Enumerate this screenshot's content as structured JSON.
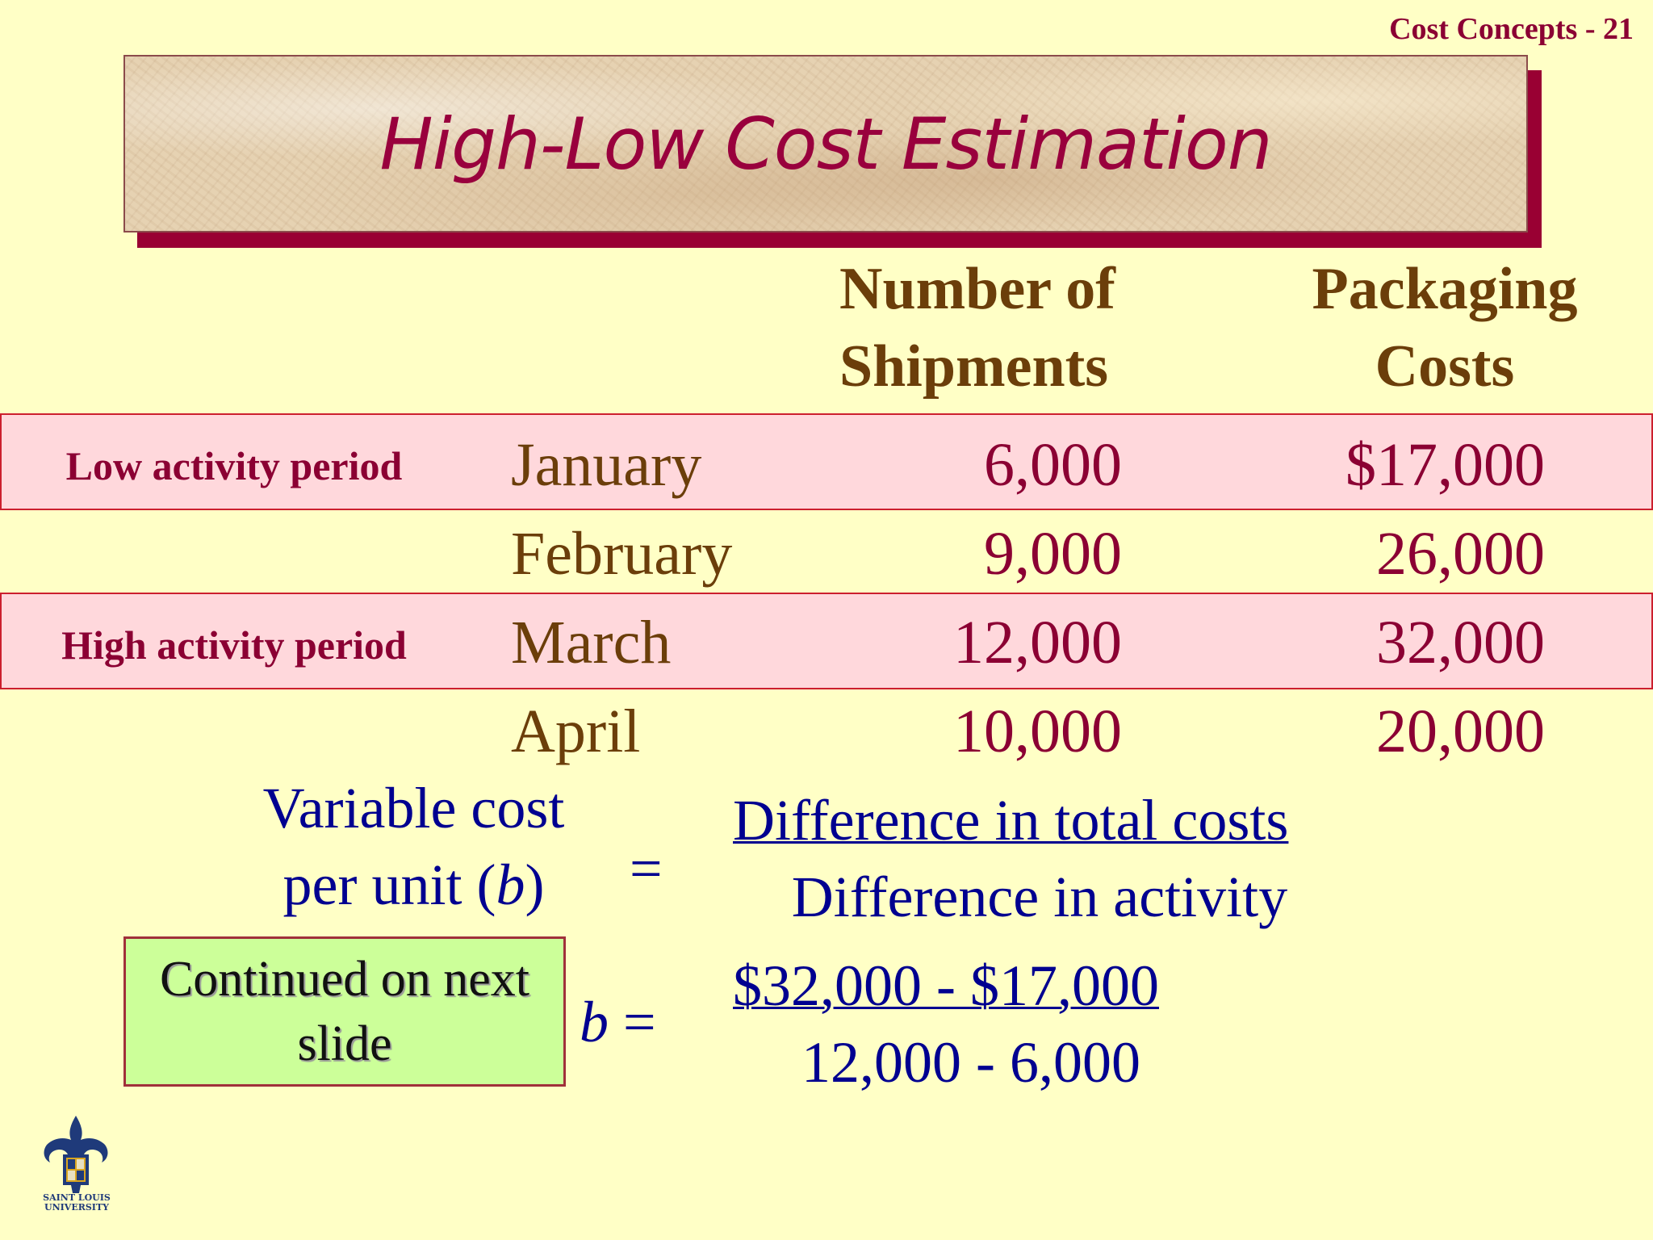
{
  "slide_label": "Cost Concepts  -  21",
  "title": "High-Low Cost Estimation",
  "table": {
    "headers": {
      "shipments": [
        "Number of",
        "Shipments"
      ],
      "costs": [
        "Packaging",
        "Costs"
      ]
    },
    "low_label": "Low activity period",
    "high_label": "High activity period",
    "rows": [
      {
        "month": "January",
        "shipments": "6,000",
        "costs": "$17,000"
      },
      {
        "month": "February",
        "shipments": "9,000",
        "costs": "26,000"
      },
      {
        "month": "March",
        "shipments": "12,000",
        "costs": "32,000"
      },
      {
        "month": "April",
        "shipments": "10,000",
        "costs": "20,000"
      }
    ]
  },
  "formula": {
    "label_line1": "Variable cost",
    "label_line2_prefix": "per unit (",
    "label_line2_var": "b",
    "label_line2_suffix": ")",
    "equals": "=",
    "numerator": "Difference in total costs",
    "denominator": "Difference in activity",
    "b_var": "b",
    "b_equals": " =",
    "calc_numerator": "$32,000 - $17,000",
    "calc_denominator": "12,000 - 6,000"
  },
  "continued": [
    "Continued on next",
    "slide"
  ],
  "logo": {
    "text_line1": "SAINT LOUIS",
    "text_line2": "UNIVERSITY",
    "colors": {
      "blue": "#1F3A7A",
      "gold": "#D9A520"
    }
  },
  "colors": {
    "background": "#FFFFC6",
    "title": "#99003D",
    "header": "#6B3E0A",
    "number": "#8B0033",
    "band": "#FFD8DC",
    "formula": "#000090",
    "continued_box": "#CCFF99"
  }
}
